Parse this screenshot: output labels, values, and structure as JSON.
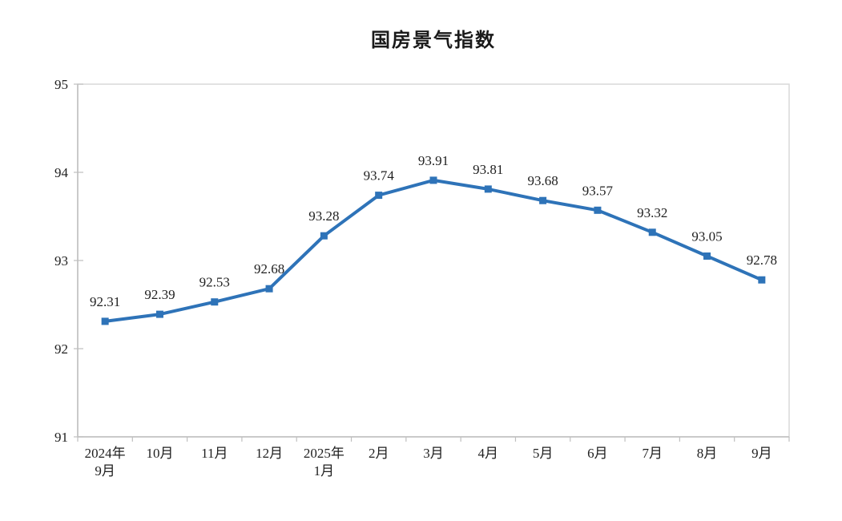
{
  "title": "国房景气指数",
  "chart_data": {
    "type": "line",
    "title": "国房景气指数",
    "categories": [
      "2024年\n9月",
      "10月",
      "11月",
      "12月",
      "2025年\n1月",
      "2月",
      "3月",
      "4月",
      "5月",
      "6月",
      "7月",
      "8月",
      "9月"
    ],
    "series": [
      {
        "name": "国房景气指数",
        "values": [
          92.31,
          92.39,
          92.53,
          92.68,
          93.28,
          93.74,
          93.91,
          93.81,
          93.68,
          93.57,
          93.32,
          93.05,
          92.78
        ],
        "data_labels": [
          "92.31",
          "92.39",
          "92.53",
          "92.68",
          "93.28",
          "93.74",
          "93.91",
          "93.81",
          "93.68",
          "93.57",
          "93.32",
          "93.05",
          "92.78"
        ]
      }
    ],
    "xlabel": "",
    "ylabel": "",
    "ylim": [
      91,
      95
    ],
    "yticks": [
      91,
      92,
      93,
      94,
      95
    ],
    "grid": false,
    "legend_position": "none",
    "line_color": "#2E73B8",
    "marker": "square",
    "axis_color": "#BFBFBF",
    "border_color": "#D9D9D9",
    "label_color": "#1f1f1f",
    "data_label_position": "above"
  }
}
